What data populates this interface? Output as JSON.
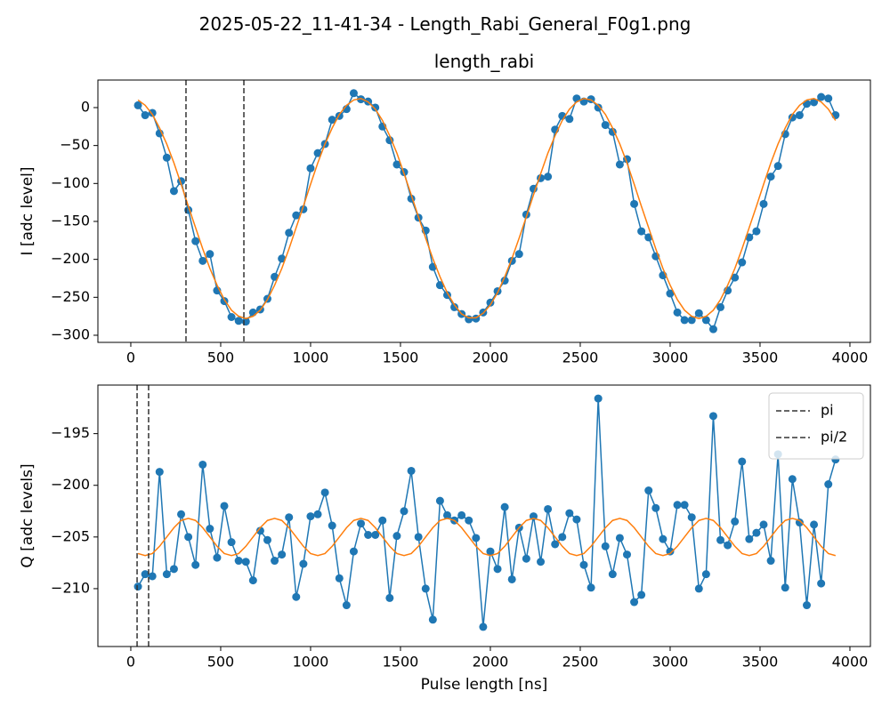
{
  "title": "2025-05-22_11-41-34 - Length_Rabi_General_F0g1.png",
  "chart_data": [
    {
      "type": "line",
      "title": "length_rabi",
      "ylabel": "I [adc level]",
      "x": [
        40,
        80,
        120,
        160,
        200,
        240,
        280,
        320,
        360,
        400,
        440,
        480,
        520,
        560,
        600,
        640,
        680,
        720,
        760,
        800,
        840,
        880,
        920,
        960,
        1000,
        1040,
        1080,
        1120,
        1160,
        1200,
        1240,
        1280,
        1320,
        1360,
        1400,
        1440,
        1480,
        1520,
        1560,
        1600,
        1640,
        1680,
        1720,
        1760,
        1800,
        1840,
        1880,
        1920,
        1960,
        2000,
        2040,
        2080,
        2120,
        2160,
        2200,
        2240,
        2280,
        2320,
        2360,
        2400,
        2440,
        2480,
        2520,
        2560,
        2600,
        2640,
        2680,
        2720,
        2760,
        2800,
        2840,
        2880,
        2920,
        2960,
        3000,
        3040,
        3080,
        3120,
        3160,
        3200,
        3240,
        3280,
        3320,
        3360,
        3400,
        3440,
        3480,
        3520,
        3560,
        3600,
        3640,
        3680,
        3720,
        3760,
        3800,
        3840,
        3880,
        3920
      ],
      "series": [
        {
          "color": "#1f77b4",
          "marker": true,
          "values": [
            3,
            -10,
            -7,
            -34,
            -66,
            -110,
            -97,
            -135,
            -176,
            -202,
            -193,
            -241,
            -255,
            -276,
            -281,
            -282,
            -270,
            -266,
            -252,
            -223,
            -199,
            -165,
            -142,
            -134,
            -80,
            -60,
            -48,
            -16,
            -11,
            -2,
            19,
            11,
            8,
            0,
            -25,
            -43,
            -75,
            -85,
            -120,
            -145,
            -162,
            -210,
            -234,
            -247,
            -263,
            -272,
            -279,
            -278,
            -270,
            -257,
            -242,
            -228,
            -202,
            -193,
            -141,
            -107,
            -93,
            -91,
            -29,
            -11,
            -15,
            12,
            8,
            11,
            0,
            -23,
            -32,
            -75,
            -68,
            -127,
            -163,
            -171,
            -196,
            -221,
            -245,
            -270,
            -280,
            -280,
            -271,
            -280,
            -292,
            -263,
            -241,
            -224,
            -204,
            -171,
            -163,
            -127,
            -91,
            -77,
            -35,
            -13,
            -10,
            5,
            7,
            14,
            12,
            -10
          ]
        },
        {
          "color": "#ff7f0e",
          "marker": false,
          "values": [
            10,
            3,
            -9,
            -27,
            -48,
            -73,
            -101,
            -130,
            -158,
            -186,
            -212,
            -234,
            -253,
            -267,
            -275,
            -278,
            -275,
            -267,
            -253,
            -234,
            -212,
            -186,
            -158,
            -130,
            -101,
            -73,
            -48,
            -27,
            -9,
            3,
            10,
            12,
            7.5,
            -2,
            -17,
            -37,
            -60,
            -87,
            -115,
            -144,
            -172,
            -199,
            -223,
            -244,
            -260,
            -272,
            -277,
            -277,
            -271,
            -260,
            -244,
            -223,
            -199,
            -172,
            -144,
            -115,
            -87,
            -60,
            -37,
            -17,
            -2,
            7.5,
            12,
            10,
            3,
            -9,
            -27,
            -48,
            -73,
            -101,
            -130,
            -158,
            -186,
            -212,
            -234,
            -253,
            -267,
            -275,
            -278,
            -275,
            -267,
            -253,
            -234,
            -212,
            -186,
            -158,
            -130,
            -101,
            -73,
            -48,
            -27,
            -9,
            3,
            10,
            12,
            7.5,
            -2,
            -17
          ]
        }
      ],
      "vlines": [
        307,
        629
      ],
      "vline_color": "#333333",
      "xlim": [
        -183,
        4114
      ],
      "ylim": [
        -309.4,
        36.3
      ],
      "xticks": [
        0,
        500,
        1000,
        1500,
        2000,
        2500,
        3000,
        3500,
        4000
      ],
      "yticks": [
        {
          "value": -300,
          "label": "−300"
        },
        {
          "value": -250,
          "label": "−250"
        },
        {
          "value": -200,
          "label": "−200"
        },
        {
          "value": -150,
          "label": "−150"
        },
        {
          "value": -100,
          "label": "−100"
        },
        {
          "value": -50,
          "label": "−50"
        },
        0
      ]
    },
    {
      "type": "line",
      "xlabel": "Pulse length [ns]",
      "ylabel": "Q [adc levels]",
      "x": [
        40,
        80,
        120,
        160,
        200,
        240,
        280,
        320,
        360,
        400,
        440,
        480,
        520,
        560,
        600,
        640,
        680,
        720,
        760,
        800,
        840,
        880,
        920,
        960,
        1000,
        1040,
        1080,
        1120,
        1160,
        1200,
        1240,
        1280,
        1320,
        1360,
        1400,
        1440,
        1480,
        1520,
        1560,
        1600,
        1640,
        1680,
        1720,
        1760,
        1800,
        1840,
        1880,
        1920,
        1960,
        2000,
        2040,
        2080,
        2120,
        2160,
        2200,
        2240,
        2280,
        2320,
        2360,
        2400,
        2440,
        2480,
        2520,
        2560,
        2600,
        2640,
        2680,
        2720,
        2760,
        2800,
        2840,
        2880,
        2920,
        2960,
        3000,
        3040,
        3080,
        3120,
        3160,
        3200,
        3240,
        3280,
        3320,
        3360,
        3400,
        3440,
        3480,
        3520,
        3560,
        3600,
        3640,
        3680,
        3720,
        3760,
        3800,
        3840,
        3880,
        3920
      ],
      "series": [
        {
          "color": "#1f77b4",
          "marker": true,
          "values": [
            -209.8,
            -208.6,
            -208.8,
            -198.7,
            -208.6,
            -208.1,
            -202.8,
            -205,
            -207.7,
            -198,
            -204.2,
            -207,
            -202,
            -205.5,
            -207.3,
            -207.4,
            -209.2,
            -204.4,
            -205.3,
            -207.3,
            -206.7,
            -203.1,
            -210.8,
            -207.6,
            -203,
            -202.8,
            -200.7,
            -203.9,
            -209,
            -211.6,
            -206.4,
            -203.7,
            -204.8,
            -204.8,
            -203.4,
            -210.9,
            -204.9,
            -202.5,
            -198.6,
            -205,
            -210,
            -213,
            -201.5,
            -202.9,
            -203.4,
            -202.9,
            -203.4,
            -205.1,
            -213.7,
            -206.4,
            -208.1,
            -202.1,
            -209.1,
            -204.1,
            -207.1,
            -203,
            -207.4,
            -202.3,
            -205.7,
            -205,
            -202.7,
            -203.3,
            -207.7,
            -209.9,
            -191.6,
            -205.9,
            -208.6,
            -205.1,
            -206.7,
            -211.3,
            -210.6,
            -200.5,
            -202.2,
            -205.2,
            -206.4,
            -201.9,
            -201.9,
            -203.1,
            -210,
            -208.6,
            -193.3,
            -205.3,
            -205.8,
            -203.5,
            -197.7,
            -205.2,
            -204.6,
            -203.8,
            -207.3,
            -197,
            -209.9,
            -199.4,
            -203.6,
            -211.6,
            -203.8,
            -209.5,
            -199.9,
            -197.5
          ]
        },
        {
          "color": "#ff7f0e",
          "marker": false,
          "values": [
            -206.6,
            -206.8,
            -206.6,
            -205.9,
            -205.0,
            -204.1,
            -203.4,
            -203.2,
            -203.4,
            -204.1,
            -205.0,
            -205.9,
            -206.6,
            -206.8,
            -206.6,
            -205.9,
            -205.0,
            -204.1,
            -203.4,
            -203.2,
            -203.4,
            -204.1,
            -205.0,
            -205.9,
            -206.6,
            -206.8,
            -206.6,
            -205.9,
            -205.0,
            -204.1,
            -203.4,
            -203.2,
            -203.4,
            -204.1,
            -205.0,
            -205.9,
            -206.6,
            -206.8,
            -206.6,
            -205.9,
            -205.0,
            -204.1,
            -203.4,
            -203.2,
            -203.4,
            -204.1,
            -205.0,
            -205.9,
            -206.6,
            -206.8,
            -206.6,
            -205.9,
            -205.0,
            -204.1,
            -203.4,
            -203.2,
            -203.4,
            -204.1,
            -205.0,
            -205.9,
            -206.6,
            -206.8,
            -206.6,
            -205.9,
            -205.0,
            -204.1,
            -203.4,
            -203.2,
            -203.4,
            -204.1,
            -205.0,
            -205.9,
            -206.6,
            -206.8,
            -206.6,
            -205.9,
            -205.0,
            -204.1,
            -203.4,
            -203.2,
            -203.4,
            -204.1,
            -205.0,
            -205.9,
            -206.6,
            -206.8,
            -206.6,
            -205.9,
            -205.0,
            -204.1,
            -203.4,
            -203.2,
            -203.4,
            -204.1,
            -205.0,
            -205.9,
            -206.6,
            -206.8
          ]
        }
      ],
      "vlines": [
        {
          "name": "pi",
          "x": 99
        },
        {
          "name": "pi/2",
          "x": 35
        }
      ],
      "vline_color": "#333333",
      "legend": "upper right",
      "xlim": [
        -183,
        4114
      ],
      "ylim": [
        -215.6,
        -190.3
      ],
      "xticks": [
        0,
        500,
        1000,
        1500,
        2000,
        2500,
        3000,
        3500,
        4000
      ],
      "yticks": [
        {
          "value": -210,
          "label": "−210"
        },
        {
          "value": -205,
          "label": "−205"
        },
        {
          "value": -200,
          "label": "−200"
        },
        {
          "value": -195,
          "label": "−195"
        }
      ]
    }
  ]
}
